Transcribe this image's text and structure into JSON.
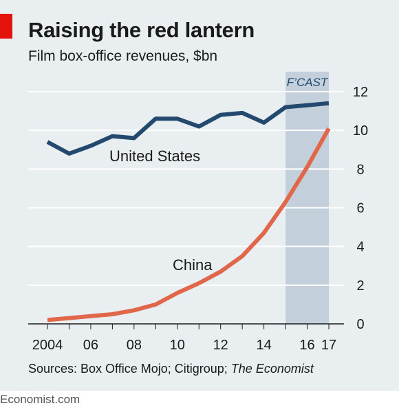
{
  "header": {
    "title": "Raising the red lantern",
    "subtitle": "Film box-office revenues, $bn"
  },
  "forecast_label": "F’CAST",
  "series_labels": {
    "us": "United States",
    "china": "China"
  },
  "footer": {
    "source_prefix": "Sources: Box Office Mojo; Citigroup; ",
    "source_italic": "The Economist",
    "brand": "Economist.com"
  },
  "colors": {
    "background": "#e9eef1",
    "accent_red": "#e3120b",
    "us_line": "#234a6e",
    "china_line": "#e0674a",
    "forecast_band": "#c3d0dc",
    "gridline": "#ffffff",
    "baseline": "#1a1a1a"
  },
  "chart_data": {
    "type": "line",
    "x": [
      2004,
      2005,
      2006,
      2007,
      2008,
      2009,
      2010,
      2011,
      2012,
      2013,
      2014,
      2015,
      2016,
      2017
    ],
    "x_tick_labels": [
      {
        "value": 2004,
        "label": "2004"
      },
      {
        "value": 2006,
        "label": "06"
      },
      {
        "value": 2008,
        "label": "08"
      },
      {
        "value": 2010,
        "label": "10"
      },
      {
        "value": 2012,
        "label": "12"
      },
      {
        "value": 2014,
        "label": "14"
      },
      {
        "value": 2016,
        "label": "16"
      },
      {
        "value": 2017,
        "label": "17"
      }
    ],
    "y_ticks": [
      0,
      2,
      4,
      6,
      8,
      10,
      12
    ],
    "ylim": [
      0,
      12
    ],
    "xlim": [
      2004,
      2017
    ],
    "forecast_range": [
      2015,
      2017
    ],
    "series": [
      {
        "name": "United States",
        "key": "us",
        "values": [
          9.4,
          8.8,
          9.2,
          9.7,
          9.6,
          10.6,
          10.6,
          10.2,
          10.8,
          10.9,
          10.4,
          11.2,
          11.3,
          11.4
        ]
      },
      {
        "name": "China",
        "key": "china",
        "values": [
          0.2,
          0.3,
          0.4,
          0.5,
          0.7,
          1.0,
          1.6,
          2.1,
          2.7,
          3.5,
          4.7,
          6.3,
          8.1,
          10.1
        ]
      }
    ],
    "title": "Raising the red lantern",
    "subtitle": "Film box-office revenues, $bn",
    "grid": true
  }
}
